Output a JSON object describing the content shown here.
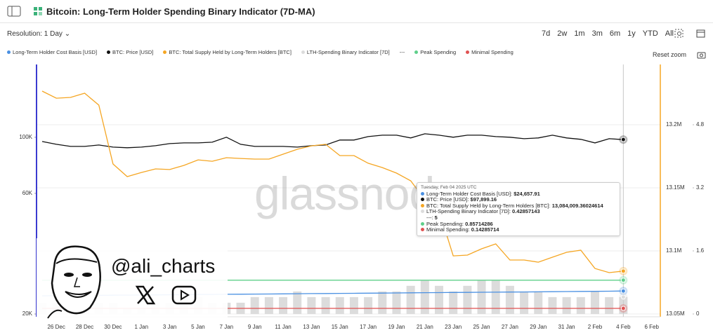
{
  "header": {
    "title": "Bitcoin: Long-Term Holder Spending Binary Indicator (7D-MA)",
    "resolution": "Resolution: 1 Day",
    "ranges": [
      "7d",
      "2w",
      "1m",
      "3m",
      "6m",
      "1y",
      "YTD",
      "All"
    ],
    "reset_zoom": "Reset zoom"
  },
  "watermark": "glassnode",
  "overlay": {
    "handle": "@ali_charts"
  },
  "tooltip": {
    "title": "Tuesday, Feb 04 2025 UTC",
    "rows": [
      {
        "label": "Long-Term Holder Cost Basis [USD]:",
        "value": "$24,657.91"
      },
      {
        "label": "BTC: Price [USD]:",
        "value": "$97,899.16"
      },
      {
        "label": "BTC: Total Supply Held by Long-Term Holders [BTC]:",
        "value": "13,084,009.36024614"
      },
      {
        "label": "LTH-Spending Binary Indicator [7D]:",
        "value": "0.42857143"
      },
      {
        "label": "---:",
        "value": "5"
      },
      {
        "label": "Peak Spending:",
        "value": "0.85714286"
      },
      {
        "label": "Minimal Spending:",
        "value": "0.14285714"
      }
    ]
  },
  "chart_data": {
    "type": "line",
    "yscale": "log",
    "grid": true,
    "legend_separator": "---",
    "ycolor": "#3b3bd0",
    "y2color": "#f5a623",
    "categories": [
      null,
      "26 Dec",
      null,
      "28 Dec",
      null,
      "30 Dec",
      null,
      "1 Jan",
      null,
      "3 Jan",
      null,
      "5 Jan",
      null,
      "7 Jan",
      null,
      "9 Jan",
      null,
      "11 Jan",
      null,
      "13 Jan",
      null,
      "15 Jan",
      null,
      "17 Jan",
      null,
      "19 Jan",
      null,
      "21 Jan",
      null,
      "23 Jan",
      null,
      "25 Jan",
      null,
      "27 Jan",
      null,
      "29 Jan",
      null,
      "31 Jan",
      null,
      "2 Feb",
      null,
      "4 Feb",
      null,
      "6 Feb"
    ],
    "ylim": [
      19500,
      194000
    ],
    "yticks": [
      {
        "value": 20000,
        "label": "20K"
      },
      {
        "value": 60000,
        "label": "60K"
      },
      {
        "value": 100000,
        "label": "100K"
      }
    ],
    "y2lim": [
      13047800,
      13247800
    ],
    "y2ticks": [
      {
        "value": 13050000,
        "label": "13.05M"
      },
      {
        "value": 13100000,
        "label": "13.1M"
      },
      {
        "value": 13150000,
        "label": "13.15M"
      },
      {
        "value": 13200000,
        "label": "13.2M"
      }
    ],
    "y3lim": [
      -0.071,
      6.329
    ],
    "y3ticks": [
      0,
      1.6,
      3.2,
      4.8
    ],
    "series": [
      {
        "name": "Long-Term Holder Cost Basis [USD]",
        "color": "#4a90e2",
        "axis": "y",
        "values": [
          23600,
          23630,
          23650,
          23680,
          23700,
          23730,
          23750,
          23780,
          23800,
          23830,
          23850,
          23880,
          23900,
          23930,
          23950,
          23980,
          24000,
          24030,
          24050,
          24080,
          24100,
          24130,
          24150,
          24180,
          24200,
          24230,
          24250,
          24280,
          24300,
          24330,
          24350,
          24380,
          24400,
          24430,
          24450,
          24480,
          24500,
          24530,
          24560,
          24590,
          24620,
          24657.91,
          null,
          null
        ]
      },
      {
        "name": "BTC: Price [USD]",
        "color": "#111111",
        "axis": "y",
        "values": [
          96200,
          93800,
          92000,
          92000,
          93200,
          91400,
          90900,
          91400,
          92600,
          94400,
          95000,
          95000,
          95600,
          100000,
          93800,
          92000,
          92000,
          92000,
          91400,
          92600,
          93200,
          97500,
          97500,
          100600,
          101900,
          101900,
          99400,
          103200,
          101900,
          100000,
          101900,
          101900,
          100600,
          100000,
          98700,
          99400,
          101900,
          99400,
          98100,
          95000,
          98700,
          97899.16,
          null,
          null
        ]
      },
      {
        "name": "BTC: Total Supply Held by Long-Term Holders [BTC]",
        "color": "#f5a623",
        "axis": "y2",
        "values": [
          13226700,
          13221100,
          13221700,
          13225000,
          13215600,
          13168900,
          13158900,
          13162200,
          13165000,
          13164500,
          13167800,
          13172200,
          13171100,
          13173900,
          13173300,
          13172800,
          13172800,
          13176700,
          13180600,
          13183300,
          13184500,
          13175600,
          13175600,
          13169500,
          13166100,
          13161700,
          13155600,
          13140600,
          13132200,
          13096100,
          13096700,
          13101700,
          13105600,
          13092800,
          13092800,
          13091100,
          13095000,
          13098900,
          13100600,
          13086100,
          13082800,
          13084009.36024614,
          null,
          null
        ]
      },
      {
        "name": "LTH-Spending Binary Indicator [7D]",
        "color": "#dcdcdc",
        "axis": "y3",
        "type": "bar",
        "values": [
          0.28571429,
          0.28571429,
          0.42857143,
          0.42857143,
          0.28571429,
          0.28571429,
          0.14285714,
          0.14285714,
          0.28571429,
          0.28571429,
          0.42857143,
          0.42857143,
          0.28571429,
          0.28571429,
          0.28571429,
          0.42857143,
          0.42857143,
          0.42857143,
          0.57142857,
          0.42857143,
          0.42857143,
          0.42857143,
          0.42857143,
          0.42857143,
          0.57142857,
          0.57142857,
          0.71428571,
          0.85714286,
          0.71428571,
          0.57142857,
          0.71428571,
          0.85714286,
          0.85714286,
          0.71428571,
          0.57142857,
          0.57142857,
          0.42857143,
          0.42857143,
          0.42857143,
          0.57142857,
          0.42857143,
          0.42857143,
          null,
          null
        ]
      },
      {
        "name": "Peak Spending",
        "color": "#5fcf8a",
        "axis": "y3",
        "values": [
          0.85714286,
          0.85714286,
          0.85714286,
          0.85714286,
          0.85714286,
          0.85714286,
          0.85714286,
          0.85714286,
          0.85714286,
          0.85714286,
          0.85714286,
          0.85714286,
          0.85714286,
          0.85714286,
          0.85714286,
          0.85714286,
          0.85714286,
          0.85714286,
          0.85714286,
          0.85714286,
          0.85714286,
          0.85714286,
          0.85714286,
          0.85714286,
          0.85714286,
          0.85714286,
          0.85714286,
          0.85714286,
          0.85714286,
          0.85714286,
          0.85714286,
          0.85714286,
          0.85714286,
          0.85714286,
          0.85714286,
          0.85714286,
          0.85714286,
          0.85714286,
          0.85714286,
          0.85714286,
          0.85714286,
          0.85714286,
          null,
          null
        ]
      },
      {
        "name": "Minimal Spending",
        "color": "#e05252",
        "axis": "y3",
        "values": [
          0.14285714,
          0.14285714,
          0.14285714,
          0.14285714,
          0.14285714,
          0.14285714,
          0.14285714,
          0.14285714,
          0.14285714,
          0.14285714,
          0.14285714,
          0.14285714,
          0.14285714,
          0.14285714,
          0.14285714,
          0.14285714,
          0.14285714,
          0.14285714,
          0.14285714,
          0.14285714,
          0.14285714,
          0.14285714,
          0.14285714,
          0.14285714,
          0.14285714,
          0.14285714,
          0.14285714,
          0.14285714,
          0.14285714,
          0.14285714,
          0.14285714,
          0.14285714,
          0.14285714,
          0.14285714,
          0.14285714,
          0.14285714,
          0.14285714,
          0.14285714,
          0.14285714,
          0.14285714,
          0.14285714,
          0.14285714,
          null,
          null
        ]
      }
    ]
  }
}
